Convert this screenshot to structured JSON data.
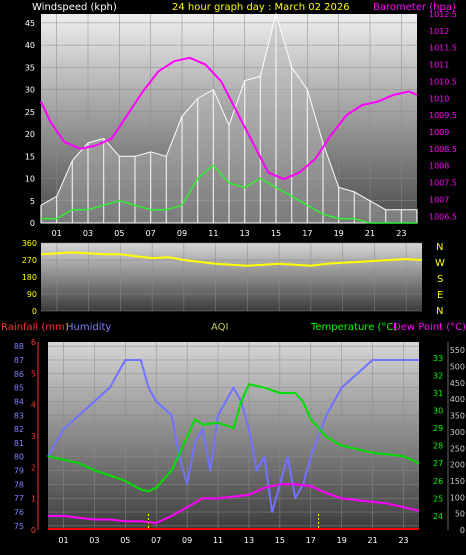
{
  "colors": {
    "background": "#000000",
    "grid": "#8a8a8a",
    "wind": "#ffffff",
    "gust_fill": "#b8b8b8",
    "barometer": "#ff00ff",
    "direction": "#ffff00",
    "rainfall": "#ff0000",
    "humidity": "#6f73ff",
    "aqi": "#c8c864",
    "temperature": "#00dd00",
    "dewpoint": "#ff00ff",
    "wind_axis": "#ffffff",
    "baro_axis": "#ff00ff",
    "rain_axis": "#ff3030",
    "humidity_axis": "#8080ff",
    "temp_axis": "#00ff00",
    "aqi_axis": "#c8c8c8"
  },
  "header": {
    "wind_label": "Windspeed (kph)",
    "title": "24 hour graph day : March 02 2026",
    "baro_label": "Barometer (hpa)"
  },
  "compass": [
    "N",
    "W",
    "S",
    "E",
    "N"
  ],
  "x_ticks": [
    "01",
    "03",
    "05",
    "07",
    "09",
    "11",
    "13",
    "15",
    "17",
    "19",
    "21",
    "23"
  ],
  "legend2": {
    "rain": "Rainfall (mm)",
    "humidity": "Humidity",
    "aqi": "AQI",
    "temperature": "Temperature (°C)",
    "dewpoint": "Dew Point (°C)"
  },
  "chart_data": [
    {
      "type": "line",
      "title": "24 hour graph day : March 02 2026",
      "x_range_hours": [
        0,
        24
      ],
      "ylabel_left": "Windspeed (kph)",
      "ylim_left": [
        0,
        47
      ],
      "yticks_left": [
        "0",
        "5",
        "10",
        "15",
        "20",
        "25",
        "30",
        "35",
        "40",
        "45"
      ],
      "ylabel_right": "Barometer (hpa)",
      "ylim_right": [
        1006.3,
        1012.5
      ],
      "yticks_right": [
        "1006.5",
        "1007",
        "1007.5",
        "1008",
        "1008.5",
        "1009",
        "1009.5",
        "1010",
        "1010.5",
        "1011",
        "1011.5",
        "1012",
        "1012.5"
      ],
      "series": [
        {
          "name": "Windspeed (kph)",
          "x": [
            0,
            1,
            2,
            3,
            4,
            5,
            6,
            7,
            8,
            9,
            10,
            11,
            12,
            13,
            14,
            15,
            16,
            17,
            18,
            19,
            20,
            21,
            22,
            23,
            24
          ],
          "values": [
            1,
            1,
            3,
            3,
            4,
            5,
            4,
            3,
            3,
            4,
            10,
            13,
            9,
            8,
            10,
            8,
            6,
            4,
            2,
            1,
            1,
            0,
            0,
            0,
            0
          ]
        },
        {
          "name": "Gust",
          "x": [
            0,
            1,
            2,
            3,
            4,
            5,
            6,
            7,
            8,
            9,
            10,
            11,
            12,
            13,
            14,
            15,
            16,
            17,
            18,
            19,
            20,
            21,
            22,
            23,
            24
          ],
          "values": [
            4,
            6,
            14,
            18,
            19,
            15,
            15,
            16,
            15,
            24,
            28,
            30,
            22,
            32,
            33,
            47,
            35,
            30,
            18,
            8,
            7,
            5,
            3,
            3,
            3
          ]
        },
        {
          "name": "Barometer (hpa)",
          "x": [
            0,
            0.6,
            1.5,
            2.5,
            3.5,
            4.5,
            5.5,
            6.5,
            7.5,
            8.5,
            9.5,
            10.5,
            11.5,
            12.5,
            13.5,
            14.5,
            15.5,
            16.5,
            17.5,
            18.5,
            19.5,
            20.5,
            21.5,
            22.5,
            23.5,
            24
          ],
          "values": [
            1009.9,
            1009.3,
            1008.7,
            1008.5,
            1008.6,
            1008.8,
            1009.5,
            1010.2,
            1010.8,
            1011.1,
            1011.2,
            1011.0,
            1010.5,
            1009.6,
            1008.7,
            1007.8,
            1007.6,
            1007.8,
            1008.2,
            1008.9,
            1009.5,
            1009.8,
            1009.9,
            1010.1,
            1010.2,
            1010.1
          ]
        }
      ]
    },
    {
      "type": "line",
      "title": "",
      "x_range_hours": [
        0,
        24
      ],
      "ylabel_left": "",
      "ylim_left": [
        0,
        360
      ],
      "yticks_left": [
        "0",
        "90",
        "180",
        "270",
        "360"
      ],
      "series": [
        {
          "name": "Wind direction",
          "x": [
            0,
            1,
            2,
            3,
            4,
            5,
            6,
            7,
            8,
            9,
            10,
            11,
            12,
            13,
            14,
            15,
            16,
            17,
            18,
            19,
            20,
            21,
            22,
            23,
            24
          ],
          "values": [
            300,
            305,
            310,
            305,
            300,
            300,
            290,
            280,
            285,
            270,
            260,
            250,
            245,
            240,
            245,
            250,
            245,
            240,
            250,
            255,
            260,
            265,
            270,
            275,
            270
          ]
        }
      ]
    },
    {
      "type": "line",
      "title": "",
      "x_range_hours": [
        0,
        24
      ],
      "ylabel_left": "Rainfall (mm)",
      "yticks_rain": [
        "0",
        "1",
        "2",
        "3",
        "4",
        "5",
        "6"
      ],
      "ylabel_humidity": "Humidity",
      "ylim_humidity": [
        74.7,
        88.3
      ],
      "yticks_humidity": [
        "75",
        "76",
        "77",
        "78",
        "79",
        "80",
        "81",
        "82",
        "83",
        "84",
        "85",
        "86",
        "87",
        "88"
      ],
      "ylabel_right": "Temperature (°C)",
      "ylim_temp": [
        23.2,
        33.9
      ],
      "yticks_temp": [
        "24",
        "25",
        "26",
        "27",
        "28",
        "29",
        "30",
        "31",
        "32",
        "33"
      ],
      "ylabel_aqi": "AQI",
      "ylim_aqi": [
        0,
        575
      ],
      "yticks_aqi": [
        "0",
        "50",
        "100",
        "150",
        "200",
        "250",
        "300",
        "350",
        "400",
        "450",
        "500",
        "550"
      ],
      "series": [
        {
          "name": "Humidity",
          "x": [
            0,
            0.5,
            1,
            2,
            3,
            4,
            4.5,
            5,
            6,
            6.5,
            7,
            8,
            8.5,
            9,
            9.5,
            10,
            10.5,
            11,
            12,
            12.5,
            13,
            13.5,
            14,
            14.5,
            15,
            15.5,
            16,
            16.5,
            17,
            18,
            19,
            20,
            21,
            22,
            23,
            24
          ],
          "values": [
            80,
            81,
            82,
            83,
            84,
            85,
            86,
            87,
            87,
            85,
            84,
            83,
            80,
            78,
            81,
            82,
            79,
            83,
            85,
            84,
            82,
            79,
            80,
            76,
            78,
            80,
            77,
            78,
            80,
            83,
            85,
            86,
            87,
            87,
            87,
            87
          ]
        },
        {
          "name": "Temperature (°C)",
          "x": [
            0,
            1,
            2,
            3,
            4,
            5,
            6,
            6.5,
            7,
            8,
            9,
            9.5,
            10,
            11,
            12,
            12.5,
            13,
            14,
            15,
            16,
            16.5,
            17,
            18,
            19,
            20,
            21,
            22,
            23,
            24
          ],
          "values": [
            27.4,
            27.2,
            27.0,
            26.6,
            26.3,
            26.0,
            25.5,
            25.4,
            25.6,
            26.6,
            28.5,
            29.5,
            29.2,
            29.3,
            29.0,
            30.5,
            31.5,
            31.3,
            31.0,
            31.0,
            30.5,
            29.5,
            28.5,
            28.0,
            27.8,
            27.6,
            27.5,
            27.4,
            27.0
          ]
        },
        {
          "name": "Dew Point (°C)",
          "x": [
            0,
            1,
            2,
            3,
            4,
            5,
            6,
            7,
            7.5,
            8,
            9,
            10,
            11,
            12,
            13,
            14,
            15,
            16,
            17,
            18,
            19,
            20,
            21,
            22,
            23,
            24
          ],
          "values": [
            24.0,
            24.0,
            23.9,
            23.8,
            23.8,
            23.7,
            23.7,
            23.6,
            23.8,
            24.0,
            24.5,
            25.0,
            25.0,
            25.1,
            25.2,
            25.6,
            25.8,
            25.8,
            25.7,
            25.3,
            25.0,
            24.9,
            24.8,
            24.7,
            24.5,
            24.3
          ]
        },
        {
          "name": "Rainfall (mm)",
          "x": [
            0,
            24
          ],
          "values": [
            0,
            0
          ]
        }
      ]
    }
  ]
}
